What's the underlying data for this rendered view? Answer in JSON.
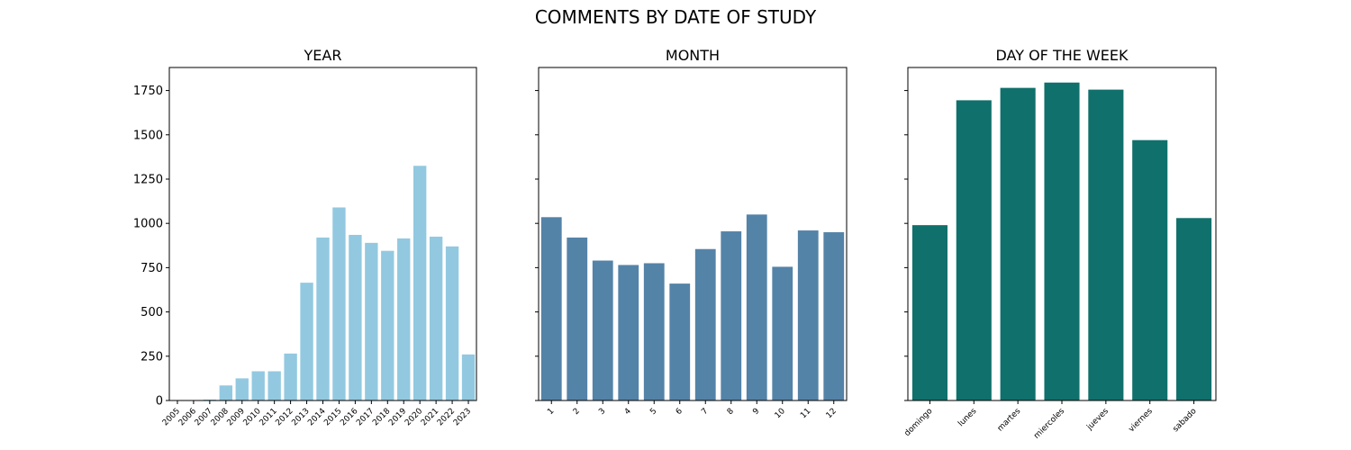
{
  "chart_data": {
    "suptitle": "COMMENTS BY DATE OF STUDY",
    "shared_y": true,
    "ylim": [
      0,
      1880
    ],
    "yticks": [
      0,
      250,
      500,
      750,
      1000,
      1250,
      1500,
      1750
    ],
    "panels": [
      {
        "type": "bar",
        "title": "YEAR",
        "color": "#92c9e0",
        "categories": [
          "2005",
          "2006",
          "2007",
          "2008",
          "2009",
          "2010",
          "2011",
          "2012",
          "2013",
          "2014",
          "2015",
          "2016",
          "2017",
          "2018",
          "2019",
          "2020",
          "2021",
          "2022",
          "2023"
        ],
        "values": [
          1,
          2,
          5,
          85,
          125,
          165,
          165,
          265,
          665,
          920,
          1090,
          935,
          890,
          845,
          915,
          1325,
          925,
          870,
          260
        ],
        "xtick_rotation": -45
      },
      {
        "type": "bar",
        "title": "MONTH",
        "color": "#5483a8",
        "categories": [
          "1",
          "2",
          "3",
          "4",
          "5",
          "6",
          "7",
          "8",
          "9",
          "10",
          "11",
          "12"
        ],
        "values": [
          1035,
          920,
          790,
          765,
          775,
          660,
          855,
          955,
          1050,
          755,
          960,
          950
        ],
        "xtick_rotation": -45
      },
      {
        "type": "bar",
        "title": "DAY OF THE WEEK",
        "color": "#10706c",
        "categories": [
          "domingo",
          "lunes",
          "martes",
          "miercoles",
          "jueves",
          "viernes",
          "sabado"
        ],
        "values": [
          990,
          1695,
          1765,
          1795,
          1755,
          1470,
          1030
        ],
        "xtick_rotation": -45
      }
    ]
  }
}
